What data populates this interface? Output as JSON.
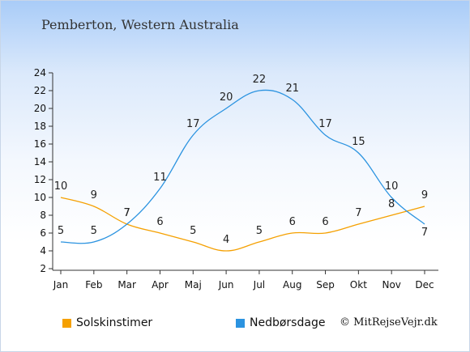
{
  "header": {
    "title": "Pemberton, Western Australia"
  },
  "chart_data": {
    "type": "line",
    "title": "Pemberton, Western Australia",
    "categories": [
      "Jan",
      "Feb",
      "Mar",
      "Apr",
      "Maj",
      "Jun",
      "Jul",
      "Aug",
      "Sep",
      "Okt",
      "Nov",
      "Dec"
    ],
    "ylim": [
      2,
      24
    ],
    "yticks": [
      2,
      4,
      6,
      8,
      10,
      12,
      14,
      16,
      18,
      20,
      22,
      24
    ],
    "grid": false,
    "legend_position": "bottom",
    "series": [
      {
        "name": "Solskinstimer",
        "color": "#f5a000",
        "values": [
          10,
          9,
          7,
          6,
          5,
          4,
          5,
          6,
          6,
          7,
          8,
          9
        ]
      },
      {
        "name": "Nedbørsdage",
        "color": "#2b93e0",
        "values": [
          5,
          5,
          7,
          11,
          17,
          20,
          22,
          21,
          17,
          15,
          10,
          7
        ]
      }
    ]
  },
  "legend": {
    "items": [
      {
        "label": "Solskinstimer",
        "color": "#f5a000"
      },
      {
        "label": "Nedbørsdage",
        "color": "#2b93e0"
      }
    ]
  },
  "footer": {
    "credit": "© MitRejseVejr.dk"
  }
}
